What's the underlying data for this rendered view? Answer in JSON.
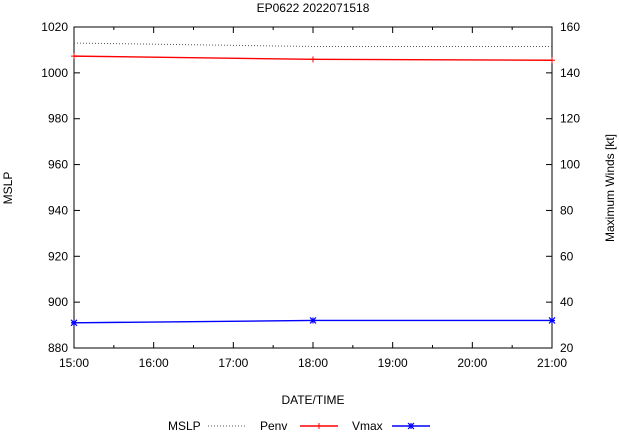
{
  "chart_data": {
    "type": "line",
    "title": "EP0622 2022071518",
    "xlabel": "DATE/TIME",
    "ylabel": "MSLP",
    "y2label": "Maximum Winds [kt]",
    "x": [
      "15:00",
      "18:00",
      "21:00"
    ],
    "xticks": [
      "15:00",
      "16:00",
      "17:00",
      "18:00",
      "19:00",
      "20:00",
      "21:00"
    ],
    "xrange_hours": [
      15,
      21
    ],
    "x_hours": [
      15,
      18,
      21
    ],
    "ylim": [
      880,
      1020
    ],
    "yticks": [
      880,
      900,
      920,
      940,
      960,
      980,
      1000,
      1020
    ],
    "y2lim": [
      20,
      160
    ],
    "y2ticks": [
      20,
      40,
      60,
      80,
      100,
      120,
      140,
      160
    ],
    "legend_position": "bottom",
    "series": [
      {
        "name": "MSLP",
        "axis": "left",
        "color": "#555555",
        "style": "dotted",
        "marker": "none",
        "values": [
          1013,
          1011.5,
          1011.5
        ]
      },
      {
        "name": "Penv",
        "axis": "left",
        "color": "#ff0000",
        "style": "solid",
        "marker": "plus",
        "values": [
          1007.3,
          1005.9,
          1005.5
        ]
      },
      {
        "name": "Vmax",
        "axis": "right",
        "color": "#0000ff",
        "style": "solid",
        "marker": "star",
        "values": [
          31,
          32,
          32
        ]
      }
    ]
  }
}
